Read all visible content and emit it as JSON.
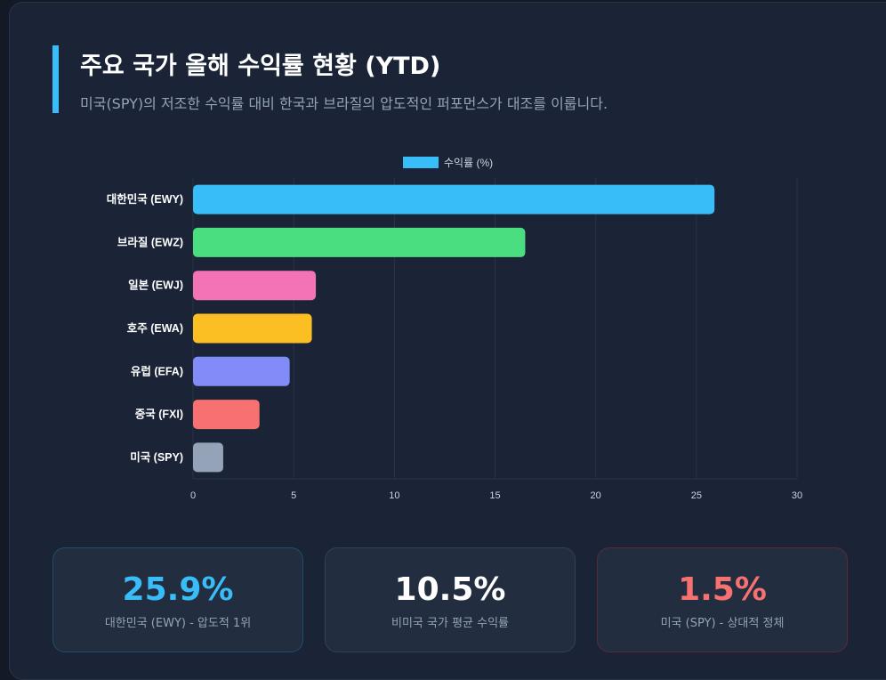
{
  "header": {
    "title": "주요 국가 올해 수익률 현황 (YTD)",
    "subtitle": "미국(SPY)의 저조한 수익률 대비 한국과 브라질의 압도적인 퍼포먼스가 대조를 이룹니다."
  },
  "chart_data": {
    "type": "bar",
    "orientation": "horizontal",
    "categories": [
      "대한민국 (EWY)",
      "브라질 (EWZ)",
      "일본 (EWJ)",
      "호주 (EWA)",
      "유럽 (EFA)",
      "중국 (FXI)",
      "미국 (SPY)"
    ],
    "series": [
      {
        "name": "수익률 (%)",
        "values": [
          25.9,
          16.5,
          6.1,
          5.9,
          4.8,
          3.3,
          1.5
        ]
      }
    ],
    "colors": [
      "#38bdf8",
      "#4ade80",
      "#f472b6",
      "#fbbf24",
      "#818cf8",
      "#f87171",
      "#94a3b8"
    ],
    "legend_color": "#38bdf8",
    "xlim": [
      0,
      30
    ],
    "xticks": [
      0,
      5,
      10,
      15,
      20,
      25,
      30
    ],
    "grid": true,
    "legend": "top"
  },
  "stats": [
    {
      "value": "25.9%",
      "label": "대한민국 (EWY) - 압도적 1위",
      "color": "#38bdf8"
    },
    {
      "value": "10.5%",
      "label": "비미국 국가 평균 수익률",
      "color": "#ffffff"
    },
    {
      "value": "1.5%",
      "label": "미국 (SPY) - 상대적 정체",
      "color": "#f87171"
    }
  ]
}
